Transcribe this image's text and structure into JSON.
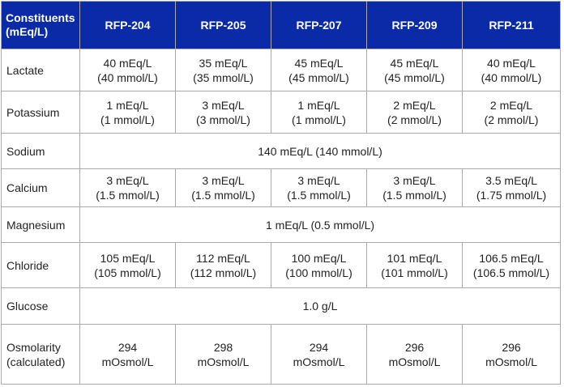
{
  "table": {
    "header": {
      "first_line1": "Constituents",
      "first_line2": "(mEq/L)",
      "columns": [
        "RFP-204",
        "RFP-205",
        "RFP-207",
        "RFP-209",
        "RFP-211"
      ]
    },
    "rows": [
      {
        "label": "Lactate",
        "cells": [
          [
            "40 mEq/L",
            "(40 mmol/L)"
          ],
          [
            "35 mEq/L",
            "(35 mmol/L)"
          ],
          [
            "45 mEq/L",
            "(45 mmol/L)"
          ],
          [
            "45 mEq/L",
            "(45 mmol/L)"
          ],
          [
            "40 mEq/L",
            "(40 mmol/L)"
          ]
        ]
      },
      {
        "label": "Potassium",
        "cells": [
          [
            "1 mEq/L",
            "(1 mmol/L)"
          ],
          [
            "3 mEq/L",
            "(3 mmol/L)"
          ],
          [
            "1 mEq/L",
            "(1 mmol/L)"
          ],
          [
            "2 mEq/L",
            "(2 mmol/L)"
          ],
          [
            "2 mEq/L",
            "(2 mmol/L)"
          ]
        ]
      },
      {
        "label": "Sodium",
        "merged": "140 mEq/L (140 mmol/L)"
      },
      {
        "label": "Calcium",
        "cells": [
          [
            "3 mEq/L",
            "(1.5 mmol/L)"
          ],
          [
            "3 mEq/L",
            "(1.5 mmol/L)"
          ],
          [
            "3 mEq/L",
            "(1.5 mmol/L)"
          ],
          [
            "3 mEq/L",
            "(1.5 mmol/L)"
          ],
          [
            "3.5 mEq/L",
            "(1.75 mmol/L)"
          ]
        ]
      },
      {
        "label": "Magnesium",
        "merged": "1 mEq/L (0.5 mmol/L)"
      },
      {
        "label": "Chloride",
        "cells": [
          [
            "105 mEq/L",
            "(105 mmol/L)"
          ],
          [
            "112 mEq/L",
            "(112 mmol/L)"
          ],
          [
            "100 mEq/L",
            "(100 mmol/L)"
          ],
          [
            "101 mEq/L",
            "(101 mmol/L)"
          ],
          [
            "106.5 mEq/L",
            "(106.5 mmol/L)"
          ]
        ]
      },
      {
        "label": "Glucose",
        "merged": "1.0 g/L"
      },
      {
        "label_line1": "Osmolarity",
        "label_line2": "(calculated)",
        "cells": [
          [
            "294",
            "mOsmol/L"
          ],
          [
            "298",
            "mOsmol/L"
          ],
          [
            "294",
            "mOsmol/L"
          ],
          [
            "296",
            "mOsmol/L"
          ],
          [
            "296",
            "mOsmol/L"
          ]
        ]
      }
    ]
  },
  "colors": {
    "header_bg": "#0a2aa8",
    "header_text": "#ffffff",
    "border": "#a9a9a9",
    "body_text": "#222222"
  }
}
